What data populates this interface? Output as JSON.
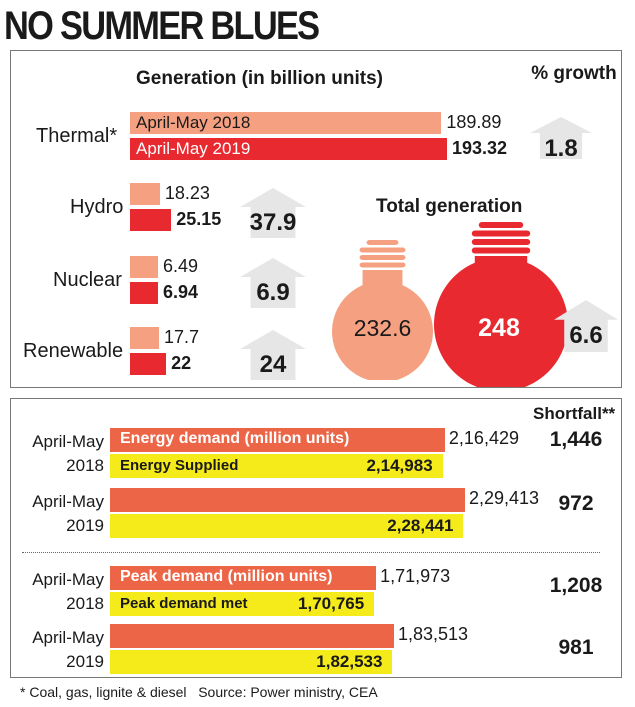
{
  "title": "NO SUMMER BLUES",
  "colors": {
    "y2018": "#f4a081",
    "y2019": "#e8292f",
    "arrow": "#e6e6e6",
    "demand": "#ed6547",
    "supplied": "#f5ea1a"
  },
  "chart_data": [
    {
      "type": "bar",
      "title": "Generation (in billion units)",
      "growth_header": "% growth",
      "categories": [
        "Thermal*",
        "Hydro",
        "Nuclear",
        "Renewable"
      ],
      "series": [
        {
          "name": "April-May 2018",
          "values": [
            189.89,
            18.23,
            6.49,
            17.7
          ],
          "labels": [
            "189.89",
            "18.23",
            "6.49",
            "17.7"
          ]
        },
        {
          "name": "April-May 2019",
          "values": [
            193.32,
            25.15,
            6.94,
            22
          ],
          "labels": [
            "193.32",
            "25.15",
            "6.94",
            "22"
          ]
        }
      ],
      "growth": [
        "1.8",
        "37.9",
        "6.9",
        "24"
      ]
    },
    {
      "type": "pie",
      "title": "Total generation",
      "values": [
        232.6,
        248
      ],
      "labels": [
        "232.6",
        "248"
      ],
      "growth": "6.6"
    },
    {
      "type": "bar",
      "shortfall_header": "Shortfall**",
      "groups": [
        {
          "period": [
            "April-May",
            "2018"
          ],
          "demand_label": "Energy demand (million units)",
          "supplied_label": "Energy Supplied",
          "demand": 216429,
          "demand_text": "2,16,429",
          "supplied": 214983,
          "supplied_text": "2,14,983",
          "shortfall": "1,446"
        },
        {
          "period": [
            "April-May",
            "2019"
          ],
          "demand_label": "",
          "supplied_label": "",
          "demand": 229413,
          "demand_text": "2,29,413",
          "supplied": 228441,
          "supplied_text": "2,28,441",
          "shortfall": "972"
        },
        {
          "period": [
            "April-May",
            "2018"
          ],
          "demand_label": "Peak demand (million units)",
          "supplied_label": "Peak demand met",
          "demand": 171973,
          "demand_text": "1,71,973",
          "supplied": 170765,
          "supplied_text": "1,70,765",
          "shortfall": "1,208"
        },
        {
          "period": [
            "April-May",
            "2019"
          ],
          "demand_label": "",
          "supplied_label": "",
          "demand": 183513,
          "demand_text": "1,83,513",
          "supplied": 182533,
          "supplied_text": "1,82,533",
          "shortfall": "981"
        }
      ]
    }
  ],
  "footnote": "* Coal, gas, lignite & diesel   Source: Power ministry, CEA"
}
